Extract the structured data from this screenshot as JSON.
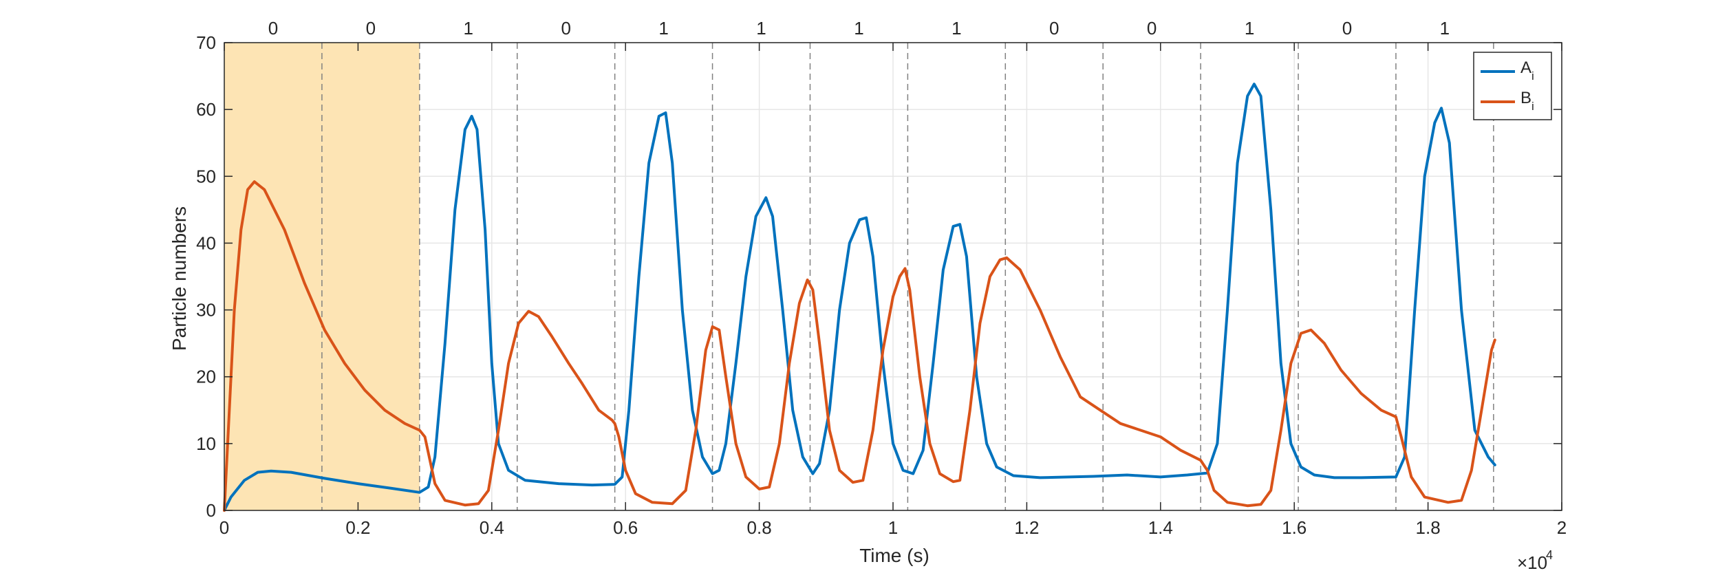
{
  "chart_data": {
    "type": "line",
    "xlabel": "Time (s)",
    "ylabel": "Particle numbers",
    "xlim": [
      0,
      20000
    ],
    "ylim": [
      0,
      70
    ],
    "x_exponent_label": "×10",
    "x_exponent_power": "4",
    "xticks": [
      0,
      2000,
      4000,
      6000,
      8000,
      10000,
      12000,
      14000,
      16000,
      18000,
      20000
    ],
    "xtick_labels": [
      "0",
      "0.2",
      "0.4",
      "0.6",
      "0.8",
      "1",
      "1.2",
      "1.4",
      "1.6",
      "1.8",
      "2"
    ],
    "yticks": [
      0,
      10,
      20,
      30,
      40,
      50,
      60,
      70
    ],
    "ytick_labels": [
      "0",
      "10",
      "20",
      "30",
      "40",
      "50",
      "60",
      "70"
    ],
    "grid": true,
    "legend_position": "top-right",
    "highlight_region": {
      "x_start": 0,
      "x_end": 2920,
      "color": "#fde4b4"
    },
    "interval_boundaries": [
      1460,
      2920,
      4380,
      5840,
      7300,
      8760,
      10220,
      11680,
      13140,
      14600,
      16060,
      17520,
      18980
    ],
    "interval_bits": [
      {
        "x": 730,
        "label": "0"
      },
      {
        "x": 2190,
        "label": "0"
      },
      {
        "x": 3650,
        "label": "1"
      },
      {
        "x": 5110,
        "label": "0"
      },
      {
        "x": 6570,
        "label": "1"
      },
      {
        "x": 8030,
        "label": "1"
      },
      {
        "x": 9490,
        "label": "1"
      },
      {
        "x": 10950,
        "label": "1"
      },
      {
        "x": 12410,
        "label": "0"
      },
      {
        "x": 13870,
        "label": "0"
      },
      {
        "x": 15330,
        "label": "1"
      },
      {
        "x": 16790,
        "label": "0"
      },
      {
        "x": 18250,
        "label": "1"
      }
    ],
    "series": [
      {
        "name": "A",
        "name_sub": "i",
        "color": "#0072bd",
        "points": [
          [
            0,
            0
          ],
          [
            100,
            2
          ],
          [
            300,
            4.5
          ],
          [
            500,
            5.7
          ],
          [
            700,
            5.9
          ],
          [
            1000,
            5.7
          ],
          [
            1500,
            4.8
          ],
          [
            2000,
            4.0
          ],
          [
            2500,
            3.3
          ],
          [
            2920,
            2.7
          ],
          [
            3050,
            3.5
          ],
          [
            3150,
            8
          ],
          [
            3300,
            25
          ],
          [
            3450,
            45
          ],
          [
            3600,
            57
          ],
          [
            3700,
            59
          ],
          [
            3780,
            57
          ],
          [
            3900,
            42
          ],
          [
            4000,
            22
          ],
          [
            4100,
            10
          ],
          [
            4250,
            6
          ],
          [
            4500,
            4.5
          ],
          [
            5000,
            4.0
          ],
          [
            5500,
            3.8
          ],
          [
            5840,
            3.9
          ],
          [
            5950,
            5
          ],
          [
            6050,
            15
          ],
          [
            6200,
            35
          ],
          [
            6350,
            52
          ],
          [
            6500,
            59
          ],
          [
            6600,
            59.5
          ],
          [
            6700,
            52
          ],
          [
            6850,
            30
          ],
          [
            7000,
            15
          ],
          [
            7150,
            8
          ],
          [
            7300,
            5.5
          ],
          [
            7400,
            6
          ],
          [
            7500,
            10
          ],
          [
            7650,
            22
          ],
          [
            7800,
            35
          ],
          [
            7950,
            44
          ],
          [
            8100,
            46.8
          ],
          [
            8200,
            44
          ],
          [
            8350,
            30
          ],
          [
            8500,
            15
          ],
          [
            8650,
            8
          ],
          [
            8800,
            5.5
          ],
          [
            8900,
            7
          ],
          [
            9050,
            15
          ],
          [
            9200,
            30
          ],
          [
            9350,
            40
          ],
          [
            9500,
            43.5
          ],
          [
            9600,
            43.8
          ],
          [
            9700,
            38
          ],
          [
            9850,
            22
          ],
          [
            10000,
            10
          ],
          [
            10150,
            6
          ],
          [
            10300,
            5.5
          ],
          [
            10450,
            9
          ],
          [
            10600,
            22
          ],
          [
            10750,
            36
          ],
          [
            10900,
            42.5
          ],
          [
            11000,
            42.8
          ],
          [
            11100,
            38
          ],
          [
            11250,
            20
          ],
          [
            11400,
            10
          ],
          [
            11550,
            6.5
          ],
          [
            11800,
            5.2
          ],
          [
            12200,
            4.9
          ],
          [
            13000,
            5.1
          ],
          [
            13500,
            5.3
          ],
          [
            14000,
            5.0
          ],
          [
            14400,
            5.3
          ],
          [
            14700,
            5.6
          ],
          [
            14850,
            10
          ],
          [
            15000,
            30
          ],
          [
            15150,
            52
          ],
          [
            15300,
            62
          ],
          [
            15400,
            63.8
          ],
          [
            15500,
            62
          ],
          [
            15650,
            45
          ],
          [
            15800,
            22
          ],
          [
            15950,
            10
          ],
          [
            16100,
            6.5
          ],
          [
            16300,
            5.3
          ],
          [
            16600,
            4.9
          ],
          [
            17000,
            4.9
          ],
          [
            17520,
            5.0
          ],
          [
            17650,
            8
          ],
          [
            17800,
            30
          ],
          [
            17950,
            50
          ],
          [
            18100,
            58
          ],
          [
            18200,
            60.2
          ],
          [
            18320,
            55
          ],
          [
            18500,
            30
          ],
          [
            18700,
            12
          ],
          [
            18900,
            8
          ],
          [
            19000,
            6.8
          ]
        ]
      },
      {
        "name": "B",
        "name_sub": "i",
        "color": "#d95319",
        "points": [
          [
            0,
            0
          ],
          [
            50,
            10
          ],
          [
            150,
            30
          ],
          [
            250,
            42
          ],
          [
            350,
            48
          ],
          [
            450,
            49.2
          ],
          [
            600,
            48
          ],
          [
            900,
            42
          ],
          [
            1200,
            34
          ],
          [
            1500,
            27
          ],
          [
            1800,
            22
          ],
          [
            2100,
            18
          ],
          [
            2400,
            15
          ],
          [
            2700,
            13
          ],
          [
            2920,
            12
          ],
          [
            3000,
            11
          ],
          [
            3150,
            4
          ],
          [
            3300,
            1.5
          ],
          [
            3600,
            0.8
          ],
          [
            3800,
            1.0
          ],
          [
            3950,
            3
          ],
          [
            4100,
            12
          ],
          [
            4250,
            22
          ],
          [
            4400,
            28
          ],
          [
            4550,
            29.8
          ],
          [
            4700,
            29
          ],
          [
            4900,
            26
          ],
          [
            5150,
            22
          ],
          [
            5350,
            19
          ],
          [
            5600,
            15
          ],
          [
            5800,
            13.5
          ],
          [
            5840,
            13.0
          ],
          [
            5900,
            11
          ],
          [
            6000,
            6
          ],
          [
            6150,
            2.5
          ],
          [
            6400,
            1.2
          ],
          [
            6700,
            1.0
          ],
          [
            6900,
            3
          ],
          [
            7050,
            12
          ],
          [
            7200,
            24
          ],
          [
            7300,
            27.5
          ],
          [
            7400,
            27
          ],
          [
            7500,
            20
          ],
          [
            7650,
            10
          ],
          [
            7800,
            5
          ],
          [
            8000,
            3.2
          ],
          [
            8150,
            3.5
          ],
          [
            8300,
            10
          ],
          [
            8450,
            22
          ],
          [
            8600,
            31
          ],
          [
            8720,
            34.5
          ],
          [
            8800,
            33
          ],
          [
            8900,
            25
          ],
          [
            9050,
            12
          ],
          [
            9200,
            6
          ],
          [
            9400,
            4.2
          ],
          [
            9550,
            4.5
          ],
          [
            9700,
            12
          ],
          [
            9850,
            24
          ],
          [
            10000,
            32
          ],
          [
            10100,
            35
          ],
          [
            10180,
            36.2
          ],
          [
            10250,
            33
          ],
          [
            10400,
            20
          ],
          [
            10550,
            10
          ],
          [
            10700,
            5.5
          ],
          [
            10900,
            4.3
          ],
          [
            11000,
            4.5
          ],
          [
            11150,
            15
          ],
          [
            11300,
            28
          ],
          [
            11450,
            35
          ],
          [
            11600,
            37.5
          ],
          [
            11700,
            37.8
          ],
          [
            11900,
            36
          ],
          [
            12200,
            30
          ],
          [
            12500,
            23
          ],
          [
            12800,
            17
          ],
          [
            13100,
            15
          ],
          [
            13400,
            13
          ],
          [
            13700,
            12
          ],
          [
            14000,
            11
          ],
          [
            14300,
            9
          ],
          [
            14600,
            7.5
          ],
          [
            14700,
            6
          ],
          [
            14800,
            3
          ],
          [
            15000,
            1.2
          ],
          [
            15300,
            0.7
          ],
          [
            15500,
            0.9
          ],
          [
            15650,
            3
          ],
          [
            15800,
            12
          ],
          [
            15950,
            22
          ],
          [
            16100,
            26.5
          ],
          [
            16250,
            27
          ],
          [
            16450,
            25
          ],
          [
            16700,
            21
          ],
          [
            17000,
            17.5
          ],
          [
            17300,
            15
          ],
          [
            17520,
            14
          ],
          [
            17600,
            11
          ],
          [
            17750,
            5
          ],
          [
            17950,
            2
          ],
          [
            18300,
            1.2
          ],
          [
            18500,
            1.5
          ],
          [
            18650,
            6
          ],
          [
            18800,
            15
          ],
          [
            18950,
            24
          ],
          [
            19000,
            25.5
          ]
        ]
      }
    ]
  }
}
